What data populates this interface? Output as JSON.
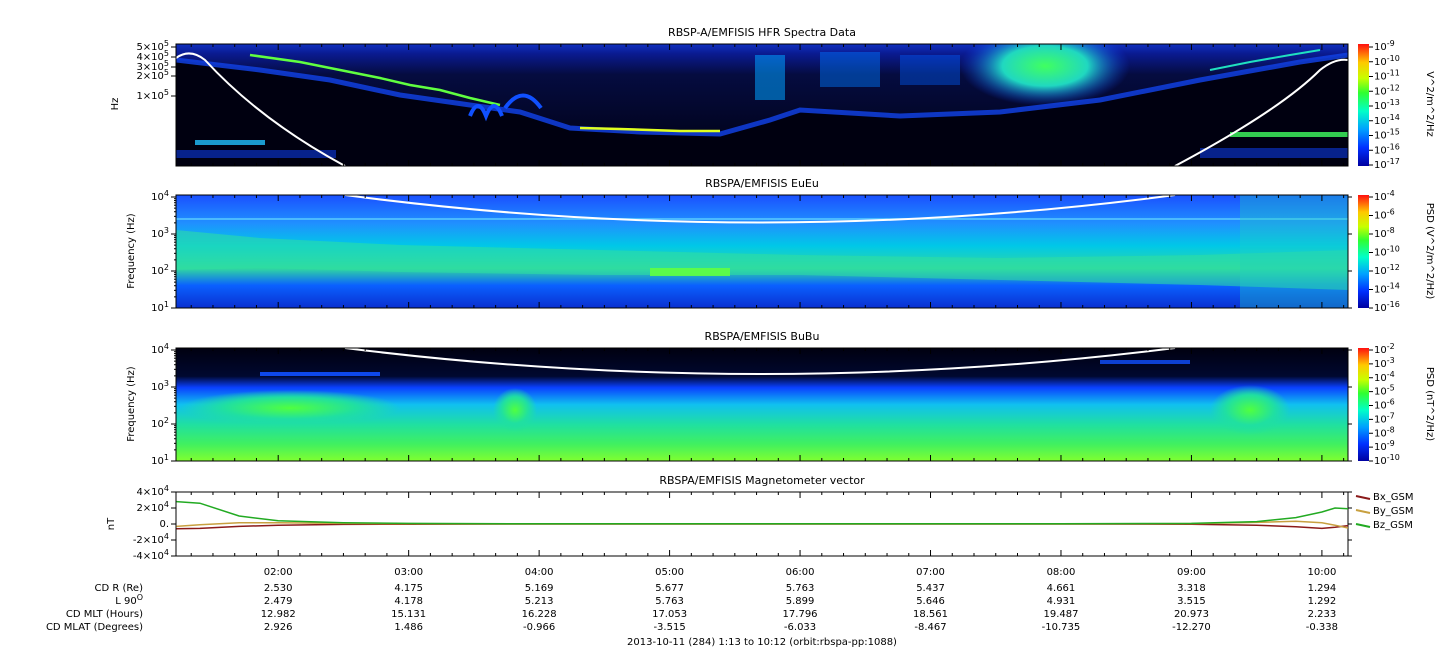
{
  "footer": "2013-10-11 (284) 1:13 to 10:12 (orbit:rbspa-pp:1088)",
  "time_labels": [
    "02:00",
    "03:00",
    "04:00",
    "05:00",
    "06:00",
    "07:00",
    "08:00",
    "09:00",
    "10:00"
  ],
  "ephemeris": {
    "rows": [
      {
        "label": "CD R (Re)",
        "values": [
          "2.530",
          "4.175",
          "5.169",
          "5.677",
          "5.763",
          "5.437",
          "4.661",
          "3.318",
          "1.294"
        ]
      },
      {
        "label": "L 90",
        "sup": "O",
        "values": [
          "2.479",
          "4.178",
          "5.213",
          "5.763",
          "5.899",
          "5.646",
          "4.931",
          "3.515",
          "1.292"
        ]
      },
      {
        "label": "CD MLT (Hours)",
        "values": [
          "12.982",
          "15.131",
          "16.228",
          "17.053",
          "17.796",
          "18.561",
          "19.487",
          "20.973",
          "2.233"
        ]
      },
      {
        "label": "CD MLAT (Degrees)",
        "values": [
          "2.926",
          "1.486",
          "-0.966",
          "-3.515",
          "-6.033",
          "-8.467",
          "-10.735",
          "-12.270",
          "-0.338"
        ]
      }
    ]
  },
  "chart_data": [
    {
      "type": "heatmap",
      "title": "RBSP-A/EMFISIS  HFR Spectra Data",
      "ylabel": "Hz",
      "y_ticks": [
        {
          "base": "5",
          "exp": "5"
        },
        {
          "base": "4",
          "exp": "5"
        },
        {
          "base": "3",
          "exp": "5"
        },
        {
          "base": "2",
          "exp": "5"
        },
        {
          "base": "1",
          "exp": "5"
        }
      ],
      "colorbar_label": "V^2/m^2/Hz",
      "colorbar_ticks": [
        "-9",
        "-10",
        "-11",
        "-12",
        "-13",
        "-14",
        "-15",
        "-16",
        "-17"
      ]
    },
    {
      "type": "heatmap",
      "title": "RBSPA/EMFISIS  EuEu",
      "ylabel": "Frequency (Hz)",
      "y_ticks": [
        "4",
        "3",
        "2",
        "1"
      ],
      "colorbar_label": "PSD (V^2/m^2/Hz)",
      "colorbar_ticks": [
        "-4",
        "-6",
        "-8",
        "-10",
        "-12",
        "-14",
        "-16"
      ]
    },
    {
      "type": "heatmap",
      "title": "RBSPA/EMFISIS  BuBu",
      "ylabel": "Frequency (Hz)",
      "y_ticks": [
        "4",
        "3",
        "2",
        "1"
      ],
      "colorbar_label": "PSD (nT^2/Hz)",
      "colorbar_ticks": [
        "-2",
        "-3",
        "-4",
        "-5",
        "-6",
        "-7",
        "-8",
        "-9",
        "-10"
      ]
    },
    {
      "type": "line",
      "title": "RBSPA/EMFISIS  Magnetometer vector",
      "ylabel": "nT",
      "ylim": [
        -40000,
        40000
      ],
      "y_ticks": [
        {
          "base": "4×10",
          "exp": "4",
          "v": 40000
        },
        {
          "base": "2×10",
          "exp": "4",
          "v": 20000
        },
        {
          "base": "0.",
          "exp": "",
          "v": 0
        },
        {
          "base": "-2×10",
          "exp": "4",
          "v": -20000
        },
        {
          "base": "-4×10",
          "exp": "4",
          "v": -40000
        }
      ],
      "x": [
        1.22,
        1.4,
        1.7,
        2.0,
        2.5,
        3.0,
        4.0,
        5.0,
        6.0,
        7.0,
        8.0,
        9.0,
        9.5,
        9.8,
        10.0,
        10.1,
        10.2
      ],
      "series": [
        {
          "name": "Bx_GSM",
          "color": "#8b1a1a",
          "values": [
            -6000,
            -5500,
            -3000,
            -1500,
            -500,
            -200,
            0,
            0,
            0,
            0,
            0,
            -300,
            -1500,
            -3500,
            -5500,
            -4000,
            -2000
          ]
        },
        {
          "name": "By_GSM",
          "color": "#c8a040",
          "values": [
            -3000,
            -1000,
            1500,
            1500,
            800,
            300,
            0,
            0,
            0,
            0,
            0,
            500,
            2000,
            3500,
            1500,
            -1500,
            -5000
          ]
        },
        {
          "name": "Bz_GSM",
          "color": "#22aa22",
          "values": [
            28000,
            26000,
            10000,
            4000,
            1500,
            800,
            300,
            200,
            200,
            200,
            300,
            800,
            3000,
            8000,
            15000,
            20000,
            19000
          ]
        }
      ]
    }
  ]
}
